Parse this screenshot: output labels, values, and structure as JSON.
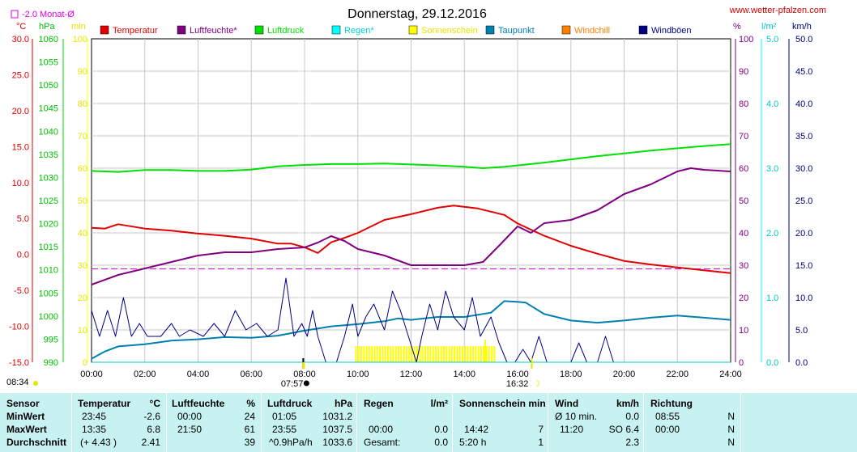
{
  "title": "Donnerstag, 29.12.2016",
  "site": "www.wetter-pfalzen.com",
  "month_avg_label": "-2.0 Monat-Ø",
  "axis_units": {
    "temp": "°C",
    "pressure": "hPa",
    "minutes": "min",
    "percent": "%",
    "rain": "l/m²",
    "wind": "km/h"
  },
  "start_label": "08:34",
  "marker_labels": {
    "sunrise": "07:57",
    "sunset": "16:32"
  },
  "legend": [
    {
      "label": "Temperatur",
      "color": "#e00000"
    },
    {
      "label": "Luftfeuchte*",
      "color": "#800080"
    },
    {
      "label": "Luftdruck",
      "color": "#00e000"
    },
    {
      "label": "Regen*",
      "color": "#00ffff"
    },
    {
      "label": "Sonnenschein",
      "color": "#ffff00"
    },
    {
      "label": "Taupunkt",
      "color": "#0080b0"
    },
    {
      "label": "Windchill",
      "color": "#ff8000"
    },
    {
      "label": "Windböen",
      "color": "#000080"
    }
  ],
  "chart_data": {
    "type": "line",
    "x_ticks": [
      "00:00",
      "02:00",
      "04:00",
      "06:00",
      "08:00",
      "10:00",
      "12:00",
      "14:00",
      "16:00",
      "18:00",
      "20:00",
      "22:00",
      "24:00"
    ],
    "axes": {
      "temp": {
        "ylim": [
          -15,
          30
        ],
        "ticks": [
          "30.0",
          "25.0",
          "20.0",
          "15.0",
          "10.0",
          "5.0",
          "0.0",
          "-5.0",
          "-10.0",
          "-15.0"
        ]
      },
      "pressure": {
        "ylim": [
          990,
          1060
        ],
        "ticks": [
          "1060",
          "1055",
          "1050",
          "1045",
          "1040",
          "1035",
          "1030",
          "1025",
          "1020",
          "1015",
          "1010",
          "1005",
          "1000",
          "995",
          "990"
        ]
      },
      "minutes": {
        "ylim": [
          0,
          100
        ],
        "ticks": [
          "100",
          "90",
          "80",
          "70",
          "60",
          "50",
          "40",
          "30",
          "20",
          "10",
          "0"
        ]
      },
      "percent": {
        "ylim": [
          0,
          100
        ],
        "ticks": [
          "100",
          "90",
          "80",
          "70",
          "60",
          "50",
          "40",
          "30",
          "20",
          "10",
          "0"
        ]
      },
      "rain": {
        "ylim": [
          0,
          5
        ],
        "ticks": [
          "5.0",
          "4.0",
          "3.0",
          "2.0",
          "1.0",
          "0.0"
        ]
      },
      "wind": {
        "ylim": [
          0,
          50
        ],
        "ticks": [
          "50.0",
          "45.0",
          "40.0",
          "35.0",
          "30.0",
          "25.0",
          "20.0",
          "15.0",
          "10.0",
          "5.0",
          "0.0"
        ]
      }
    },
    "month_avg_temp": -2.0,
    "series": [
      {
        "name": "Temperatur",
        "axis": "temp",
        "color": "#e00000",
        "points": [
          [
            0,
            3.7
          ],
          [
            0.5,
            3.6
          ],
          [
            1,
            4.2
          ],
          [
            2,
            3.6
          ],
          [
            3,
            3.3
          ],
          [
            4,
            2.9
          ],
          [
            5,
            2.6
          ],
          [
            6,
            2.2
          ],
          [
            7,
            1.5
          ],
          [
            7.5,
            1.5
          ],
          [
            8,
            1.0
          ],
          [
            8.5,
            0.2
          ],
          [
            9,
            1.7
          ],
          [
            9.5,
            2.3
          ],
          [
            10,
            3.0
          ],
          [
            11,
            4.8
          ],
          [
            12,
            5.6
          ],
          [
            13,
            6.5
          ],
          [
            13.6,
            6.8
          ],
          [
            14.5,
            6.4
          ],
          [
            15.5,
            5.5
          ],
          [
            16,
            4.3
          ],
          [
            17,
            2.6
          ],
          [
            18,
            1.2
          ],
          [
            19,
            0.1
          ],
          [
            20,
            -0.9
          ],
          [
            21,
            -1.4
          ],
          [
            22,
            -1.8
          ],
          [
            23,
            -2.2
          ],
          [
            24,
            -2.6
          ]
        ]
      },
      {
        "name": "Luftfeuchte*",
        "axis": "percent",
        "color": "#800080",
        "points": [
          [
            0,
            24
          ],
          [
            1,
            27
          ],
          [
            2,
            29
          ],
          [
            3,
            31
          ],
          [
            4,
            33
          ],
          [
            5,
            34
          ],
          [
            6,
            34
          ],
          [
            7,
            35
          ],
          [
            8,
            35.5
          ],
          [
            8.5,
            37
          ],
          [
            9,
            39
          ],
          [
            9.5,
            37.5
          ],
          [
            10,
            35
          ],
          [
            11,
            33
          ],
          [
            12,
            30
          ],
          [
            13,
            30
          ],
          [
            14,
            30
          ],
          [
            14.7,
            31
          ],
          [
            15.3,
            36
          ],
          [
            16,
            42
          ],
          [
            16.5,
            40
          ],
          [
            17,
            43
          ],
          [
            18,
            44
          ],
          [
            19,
            47
          ],
          [
            20,
            52
          ],
          [
            21,
            55
          ],
          [
            22,
            59
          ],
          [
            22.5,
            60
          ],
          [
            23,
            59.5
          ],
          [
            24,
            59
          ]
        ]
      },
      {
        "name": "Luftdruck",
        "axis": "pressure",
        "color": "#00e000",
        "points": [
          [
            0,
            1031.4
          ],
          [
            1,
            1031.2
          ],
          [
            2,
            1031.6
          ],
          [
            3,
            1031.6
          ],
          [
            4,
            1031.4
          ],
          [
            5,
            1031.4
          ],
          [
            6,
            1031.7
          ],
          [
            7,
            1032.4
          ],
          [
            8,
            1032.7
          ],
          [
            9,
            1032.9
          ],
          [
            10,
            1032.9
          ],
          [
            11,
            1033.0
          ],
          [
            12,
            1032.8
          ],
          [
            13,
            1032.6
          ],
          [
            14,
            1032.3
          ],
          [
            14.7,
            1032.0
          ],
          [
            15.5,
            1032.3
          ],
          [
            16,
            1032.6
          ],
          [
            17,
            1033.2
          ],
          [
            18,
            1033.9
          ],
          [
            19,
            1034.6
          ],
          [
            20,
            1035.2
          ],
          [
            21,
            1035.8
          ],
          [
            22,
            1036.3
          ],
          [
            23,
            1036.8
          ],
          [
            24,
            1037.2
          ]
        ]
      },
      {
        "name": "Taupunkt",
        "axis": "temp",
        "color": "#0080b0",
        "points": [
          [
            0,
            -14.5
          ],
          [
            0.5,
            -13.5
          ],
          [
            1,
            -12.8
          ],
          [
            2,
            -12.5
          ],
          [
            3,
            -12.0
          ],
          [
            4,
            -11.8
          ],
          [
            5,
            -11.5
          ],
          [
            6,
            -11.6
          ],
          [
            7,
            -11.3
          ],
          [
            8,
            -10.6
          ],
          [
            9,
            -10.0
          ],
          [
            10,
            -9.7
          ],
          [
            11,
            -9.3
          ],
          [
            11.5,
            -8.9
          ],
          [
            12,
            -9.1
          ],
          [
            13,
            -8.7
          ],
          [
            14,
            -8.7
          ],
          [
            15,
            -8.1
          ],
          [
            15.5,
            -6.5
          ],
          [
            16,
            -6.6
          ],
          [
            16.3,
            -6.7
          ],
          [
            17,
            -8.3
          ],
          [
            18,
            -9.2
          ],
          [
            19,
            -9.5
          ],
          [
            20,
            -9.2
          ],
          [
            21,
            -8.8
          ],
          [
            22,
            -8.5
          ],
          [
            23,
            -8.8
          ],
          [
            24,
            -9.1
          ]
        ]
      },
      {
        "name": "Windböen",
        "axis": "wind",
        "color": "#000080",
        "points": [
          [
            0,
            8
          ],
          [
            0.3,
            4
          ],
          [
            0.6,
            8
          ],
          [
            0.9,
            4
          ],
          [
            1.2,
            10
          ],
          [
            1.5,
            4
          ],
          [
            1.8,
            6
          ],
          [
            2.1,
            4
          ],
          [
            2.6,
            4
          ],
          [
            3,
            6
          ],
          [
            3.3,
            4
          ],
          [
            3.7,
            5
          ],
          [
            4.2,
            4
          ],
          [
            4.6,
            6
          ],
          [
            5,
            4
          ],
          [
            5.4,
            8
          ],
          [
            5.8,
            5
          ],
          [
            6.2,
            6
          ],
          [
            6.6,
            4
          ],
          [
            7,
            5
          ],
          [
            7.3,
            13
          ],
          [
            7.6,
            4
          ],
          [
            7.9,
            6
          ],
          [
            8.1,
            4
          ],
          [
            8.3,
            8
          ],
          [
            8.5,
            4
          ],
          [
            8.8,
            0
          ],
          [
            9.2,
            0
          ],
          [
            9.5,
            4
          ],
          [
            9.8,
            9
          ],
          [
            10,
            4
          ],
          [
            10.3,
            7
          ],
          [
            10.6,
            9
          ],
          [
            11,
            5
          ],
          [
            11.3,
            11
          ],
          [
            11.6,
            8
          ],
          [
            11.9,
            4
          ],
          [
            12.2,
            0
          ],
          [
            12.4,
            4
          ],
          [
            12.7,
            9
          ],
          [
            13,
            5
          ],
          [
            13.3,
            11
          ],
          [
            13.6,
            7
          ],
          [
            14,
            5
          ],
          [
            14.3,
            10
          ],
          [
            14.6,
            4
          ],
          [
            15,
            7
          ],
          [
            15.3,
            3
          ],
          [
            15.6,
            0
          ],
          [
            15.9,
            0
          ],
          [
            16.2,
            2
          ],
          [
            16.5,
            0
          ],
          [
            16.8,
            4
          ],
          [
            17.1,
            0
          ],
          [
            17.5,
            0
          ],
          [
            18,
            0
          ],
          [
            18.3,
            3
          ],
          [
            18.6,
            0
          ],
          [
            19,
            0
          ],
          [
            19.3,
            4
          ],
          [
            19.6,
            0
          ],
          [
            20,
            0
          ],
          [
            24,
            0
          ]
        ]
      }
    ],
    "sunshine_bars": {
      "axis": "minutes",
      "color": "#ffff00",
      "start": 9.9,
      "end": 15.1,
      "height": 5,
      "peaks": [
        [
          14.75,
          7
        ]
      ]
    }
  },
  "summary": {
    "columns": [
      {
        "header": [
          "Sensor"
        ],
        "rows": [
          [
            "MinWert"
          ],
          [
            "MaxWert"
          ],
          [
            "Durchschnitt"
          ]
        ]
      },
      {
        "header": [
          "Temperatur",
          "°C"
        ],
        "rows": [
          [
            "23:45",
            "-2.6"
          ],
          [
            "13:35",
            "6.8"
          ],
          [
            "(+ 4.43 )",
            "2.41"
          ]
        ]
      },
      {
        "header": [
          "Luftfeuchte",
          "%"
        ],
        "rows": [
          [
            "00:00",
            "24"
          ],
          [
            "21:50",
            "61"
          ],
          [
            "",
            "39"
          ]
        ]
      },
      {
        "header": [
          "Luftdruck",
          "hPa"
        ],
        "rows": [
          [
            "01:05",
            "1031.2"
          ],
          [
            "23:55",
            "1037.5"
          ],
          [
            "^0.9hPa/h",
            "1033.6"
          ]
        ]
      },
      {
        "header": [
          "Regen",
          "l/m²"
        ],
        "rows": [
          [
            "",
            ""
          ],
          [
            "00:00",
            "0.0"
          ],
          [
            "Gesamt:",
            "0.0"
          ]
        ]
      },
      {
        "header": [
          "Sonnenschein min",
          ""
        ],
        "rows": [
          [
            "",
            ""
          ],
          [
            "14:42",
            "7"
          ],
          [
            "5:20 h",
            "1"
          ]
        ]
      },
      {
        "header": [
          "Wind",
          "km/h"
        ],
        "rows": [
          [
            "Ø 10 min.",
            "0.0"
          ],
          [
            "11:20",
            "SO 6.4"
          ],
          [
            "",
            "2.3"
          ]
        ]
      },
      {
        "header": [
          "Richtung",
          ""
        ],
        "rows": [
          [
            "08:55",
            "N"
          ],
          [
            "00:00",
            "N"
          ],
          [
            "",
            "N"
          ]
        ]
      }
    ]
  }
}
